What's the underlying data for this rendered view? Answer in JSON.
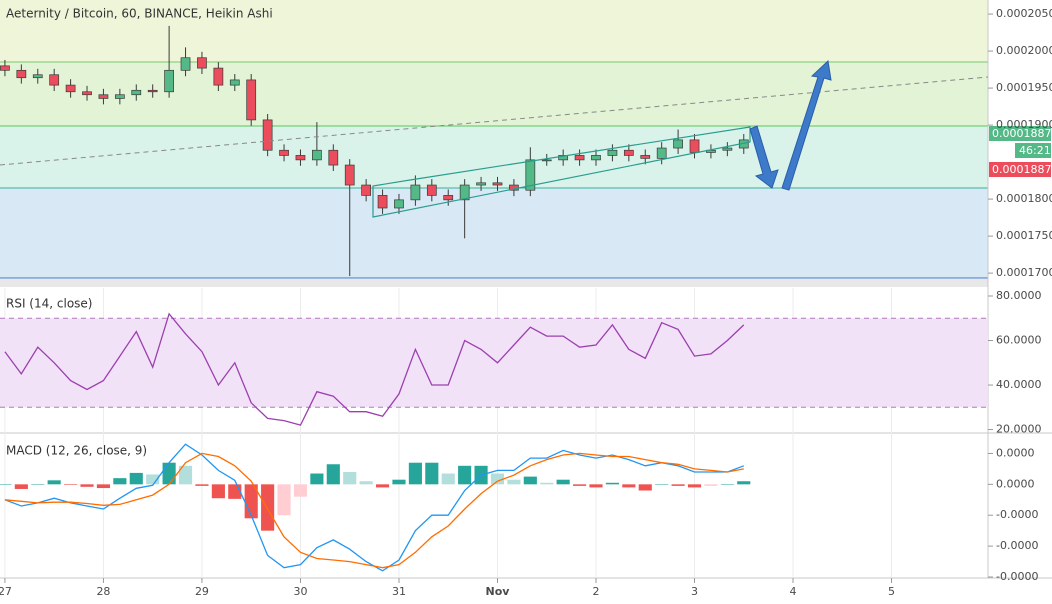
{
  "chart_data": [
    {
      "type": "candlestick",
      "title": "Aeternity / Bitcoin, 60, BINANCE, Heikin Ashi",
      "x": [
        0,
        4,
        8,
        12,
        16,
        20,
        24,
        28,
        32,
        36,
        40,
        44,
        48,
        52,
        56,
        60,
        64,
        68,
        72,
        76,
        80,
        84,
        88,
        92,
        96,
        100,
        104,
        108,
        112,
        116,
        120,
        124,
        128,
        132,
        136,
        140,
        144,
        148,
        152,
        156,
        160,
        164,
        168,
        172,
        176,
        180
      ],
      "open": [
        0.000198,
        0.0001974,
        0.0001964,
        0.0001968,
        0.0001954,
        0.0001945,
        0.0001941,
        0.0001936,
        0.0001941,
        0.0001947,
        0.0001945,
        0.0001974,
        0.0001991,
        0.0001977,
        0.0001954,
        0.0001961,
        0.0001907,
        0.0001866,
        0.0001859,
        0.0001853,
        0.0001866,
        0.0001846,
        0.0001819,
        0.0001805,
        0.0001788,
        0.0001799,
        0.0001819,
        0.0001805,
        0.0001799,
        0.0001819,
        0.0001822,
        0.0001819,
        0.0001812,
        0.0001853,
        0.0001853,
        0.0001859,
        0.0001853,
        0.0001859,
        0.0001866,
        0.0001859,
        0.0001855,
        0.0001869,
        0.000188,
        0.0001863,
        0.0001866,
        0.0001869
      ],
      "high": [
        0.0001988,
        0.0001982,
        0.0001976,
        0.0001976,
        0.0001962,
        0.0001953,
        0.0001949,
        0.0001949,
        0.0001955,
        0.0001955,
        0.0002034,
        0.0002005,
        0.0001999,
        0.0001985,
        0.0001969,
        0.0001969,
        0.0001915,
        0.0001874,
        0.0001867,
        0.0001904,
        0.0001874,
        0.0001854,
        0.0001827,
        0.0001813,
        0.0001807,
        0.0001832,
        0.0001827,
        0.0001813,
        0.0001827,
        0.000183,
        0.000183,
        0.0001827,
        0.000187,
        0.0001861,
        0.0001867,
        0.0001867,
        0.0001867,
        0.0001874,
        0.0001874,
        0.0001867,
        0.0001877,
        0.0001894,
        0.0001888,
        0.0001874,
        0.0001877,
        0.0001888
      ],
      "low": [
        0.0001966,
        0.0001956,
        0.0001956,
        0.0001946,
        0.0001937,
        0.0001933,
        0.0001928,
        0.0001928,
        0.0001933,
        0.0001937,
        0.0001937,
        0.0001966,
        0.0001969,
        0.0001946,
        0.0001946,
        0.0001899,
        0.0001858,
        0.0001851,
        0.0001845,
        0.0001845,
        0.0001838,
        0.0001696,
        0.0001797,
        0.000178,
        0.000178,
        0.0001791,
        0.0001797,
        0.0001791,
        0.0001747,
        0.0001811,
        0.0001811,
        0.0001804,
        0.0001804,
        0.0001845,
        0.0001845,
        0.0001845,
        0.0001845,
        0.0001851,
        0.0001851,
        0.0001847,
        0.0001847,
        0.0001861,
        0.0001855,
        0.0001855,
        0.0001858,
        0.0001861
      ],
      "close": [
        0.0001974,
        0.0001964,
        0.0001968,
        0.0001954,
        0.0001945,
        0.0001941,
        0.0001936,
        0.0001941,
        0.0001947,
        0.0001945,
        0.0001974,
        0.0001991,
        0.0001977,
        0.0001954,
        0.0001961,
        0.0001907,
        0.0001866,
        0.0001859,
        0.0001853,
        0.0001866,
        0.0001846,
        0.0001819,
        0.0001805,
        0.0001788,
        0.0001799,
        0.0001819,
        0.0001805,
        0.0001799,
        0.0001819,
        0.0001822,
        0.0001819,
        0.0001812,
        0.0001853,
        0.0001853,
        0.0001859,
        0.0001853,
        0.0001859,
        0.0001866,
        0.0001859,
        0.0001855,
        0.0001869,
        0.000188,
        0.0001863,
        0.0001866,
        0.0001869,
        0.000188
      ],
      "up_color": "#53b987",
      "down_color": "#eb4d5c",
      "xlim": [
        -1.2,
        239.5
      ],
      "ylim": [
        0.0001688,
        0.0002069
      ],
      "yticks": [
        {
          "value": 0.000205,
          "label": "0.0002050"
        },
        {
          "value": 0.0002,
          "label": "0.0002000"
        },
        {
          "value": 0.000195,
          "label": "0.0001950"
        },
        {
          "value": 0.00019,
          "label": "0.0001900"
        },
        {
          "value": 0.00018,
          "label": "0.0001800"
        },
        {
          "value": 0.000175,
          "label": "0.0001750"
        },
        {
          "value": 0.00017,
          "label": "0.0001700"
        }
      ],
      "price_tags": [
        "0.0001887",
        "46:21",
        "0.0001887"
      ]
    },
    {
      "type": "line",
      "title": "RSI (14, close)",
      "color": "#9c3fb0",
      "x": [
        0,
        4,
        8,
        12,
        16,
        20,
        24,
        28,
        32,
        36,
        40,
        44,
        48,
        52,
        56,
        60,
        64,
        68,
        72,
        76,
        80,
        84,
        88,
        92,
        96,
        100,
        104,
        108,
        112,
        116,
        120,
        124,
        128,
        132,
        136,
        140,
        144,
        148,
        152,
        156,
        160,
        164,
        168,
        172,
        176,
        180
      ],
      "values": [
        55,
        45,
        57,
        50,
        42,
        38,
        42,
        53,
        64,
        48,
        72,
        63,
        55,
        40,
        50,
        32,
        25,
        24,
        22,
        37,
        35,
        28,
        28,
        26,
        36,
        56,
        40,
        40,
        60,
        56,
        50,
        58,
        66,
        62,
        62,
        57,
        58,
        67,
        56,
        52,
        68,
        65,
        53,
        54,
        60,
        67
      ],
      "band_lines": [
        70,
        30
      ],
      "xlim": [
        -1.2,
        239.5
      ],
      "ylim": [
        18.9,
        83.6
      ],
      "yticks": [
        {
          "value": 80,
          "label": "80.0000"
        },
        {
          "value": 60,
          "label": "60.0000"
        },
        {
          "value": 40,
          "label": "40.0000"
        },
        {
          "value": 20,
          "label": "20.0000"
        }
      ]
    },
    {
      "type": "macd",
      "title": "MACD (12, 26, close, 9)",
      "x": [
        0,
        4,
        8,
        12,
        16,
        20,
        24,
        28,
        32,
        36,
        40,
        44,
        48,
        52,
        56,
        60,
        64,
        68,
        72,
        76,
        80,
        84,
        88,
        92,
        96,
        100,
        104,
        108,
        112,
        116,
        120,
        124,
        128,
        132,
        136,
        140,
        144,
        148,
        152,
        156,
        160,
        164,
        168,
        172,
        176,
        180
      ],
      "series": [
        {
          "color": "#2196f3",
          "values": [
            -5e-07,
            -7e-07,
            -6e-07,
            -4.5e-07,
            -6e-07,
            -7e-07,
            -8e-07,
            -4.5e-07,
            -1.3e-07,
            -3e-08,
            7e-07,
            1.3e-06,
            9.5e-07,
            4.5e-07,
            1.3e-07,
            -1e-06,
            -2.3e-06,
            -2.7e-06,
            -2.6e-06,
            -2.05e-06,
            -1.8e-06,
            -2.1e-06,
            -2.5e-06,
            -2.8e-06,
            -2.45e-06,
            -1.5e-06,
            -1e-06,
            -1e-06,
            -2e-07,
            3e-07,
            4.5e-07,
            4.5e-07,
            8.5e-07,
            8.5e-07,
            1.1e-06,
            9.5e-07,
            8.5e-07,
            9.5e-07,
            8e-07,
            6e-07,
            7e-07,
            6e-07,
            4e-07,
            4e-07,
            4e-07,
            6e-07
          ]
        },
        {
          "color": "#ff6d00",
          "values": [
            -5e-07,
            -5.5e-07,
            -6e-07,
            -5.8e-07,
            -5.8e-07,
            -6.2e-07,
            -6.8e-07,
            -6.5e-07,
            -5e-07,
            -3.5e-07,
            0,
            7e-07,
            1e-06,
            9e-07,
            6e-07,
            1e-07,
            -8e-07,
            -1.7e-06,
            -2.2e-06,
            -2.4e-06,
            -2.45e-06,
            -2.5e-06,
            -2.6e-06,
            -2.7e-06,
            -2.6e-06,
            -2.2e-06,
            -1.7e-06,
            -1.35e-06,
            -8e-07,
            -3e-07,
            1e-07,
            3e-07,
            6e-07,
            8e-07,
            9.5e-07,
            1e-06,
            9.5e-07,
            9e-07,
            9e-07,
            8e-07,
            7e-07,
            6.5e-07,
            5e-07,
            4.5e-07,
            4e-07,
            5e-07
          ]
        }
      ],
      "histogram": [
        0,
        -1.5e-07,
        0,
        1.3e-07,
        -2e-08,
        -8e-08,
        -1.2e-07,
        2e-07,
        3.7e-07,
        3.2e-07,
        7e-07,
        6e-07,
        -5e-08,
        -4.5e-07,
        -4.7e-07,
        -1.1e-06,
        -1.5e-06,
        -1e-06,
        -4e-07,
        3.5e-07,
        6.5e-07,
        4e-07,
        1e-07,
        -1e-07,
        1.5e-07,
        7e-07,
        7e-07,
        3.5e-07,
        6e-07,
        6e-07,
        3.5e-07,
        1.5e-07,
        2.5e-07,
        5e-08,
        1.5e-07,
        -5e-08,
        -1e-07,
        5e-08,
        -1e-07,
        -2e-07,
        0,
        -5e-08,
        -1e-07,
        -5e-08,
        0,
        1e-07
      ],
      "xlim": [
        -1.2,
        239.5
      ],
      "ylim": [
        -3e-06,
        1.5e-06
      ],
      "yticks": [
        {
          "value": 1e-06,
          "label": "0.0000"
        },
        {
          "value": 0,
          "label": "0.0000"
        },
        {
          "value": -1e-06,
          "label": "-0.0000"
        },
        {
          "value": -2e-06,
          "label": "-0.0000"
        },
        {
          "value": -3e-06,
          "label": "-0.0000"
        }
      ],
      "xticks": [
        {
          "value": 0,
          "label": "27"
        },
        {
          "value": 24,
          "label": "28"
        },
        {
          "value": 48,
          "label": "29"
        },
        {
          "value": 72,
          "label": "30"
        },
        {
          "value": 96,
          "label": "31"
        },
        {
          "value": 120,
          "label": "Nov"
        },
        {
          "value": 144,
          "label": "2"
        },
        {
          "value": 168,
          "label": "3"
        },
        {
          "value": 192,
          "label": "4"
        },
        {
          "value": 216,
          "label": "5"
        }
      ]
    }
  ]
}
